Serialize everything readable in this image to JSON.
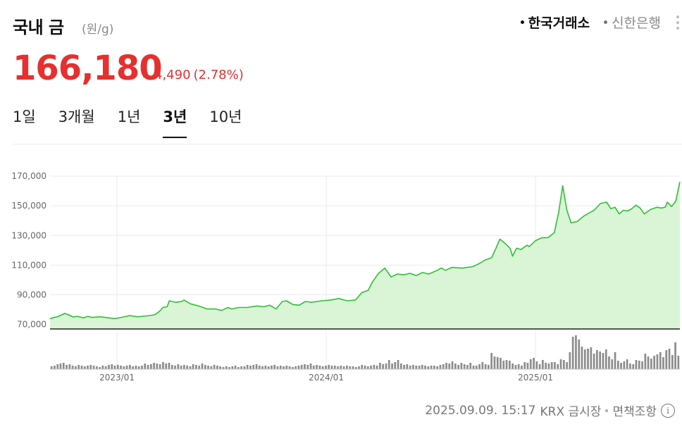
{
  "header": {
    "title": "국내 금",
    "unit": "(원/g)",
    "exchanges": [
      {
        "label": "한국거래소",
        "active": true
      },
      {
        "label": "신한은행",
        "active": false
      }
    ]
  },
  "quote": {
    "price": "166,180",
    "change": "4,490",
    "change_rate": "(2.78%)",
    "direction": "up"
  },
  "tabs": [
    {
      "label": "1일",
      "active": false
    },
    {
      "label": "3개월",
      "active": false
    },
    {
      "label": "1년",
      "active": false
    },
    {
      "label": "3년",
      "active": true
    },
    {
      "label": "10년",
      "active": false
    }
  ],
  "footer": {
    "timestamp": "2025.09.09. 15:17",
    "source": "KRX 금시장",
    "disclaimer": "면책조항",
    "info_icon": "info-icon"
  },
  "colors": {
    "price_up": "#e5302f",
    "line": "#2fbf35",
    "area": "#d9f5d6",
    "volume": "#8c8c8c"
  },
  "chart_data": {
    "type": "line",
    "subtype": "price-area-with-volume",
    "yticks": [
      "170,000",
      "150,000",
      "130,000",
      "110,000",
      "90,000",
      "70,000"
    ],
    "ytick_values": [
      170000,
      150000,
      130000,
      110000,
      90000,
      70000
    ],
    "xticks": [
      "2023/01",
      "2024/01",
      "2025/01"
    ],
    "xtick_positions": [
      2023.0,
      2024.0,
      2025.0
    ],
    "xlim": [
      2022.68,
      2025.69
    ],
    "ylim": [
      67000,
      170000
    ],
    "grid": true,
    "series": [
      {
        "values": [
          [
            2022.68,
            74000
          ],
          [
            2022.72,
            75500
          ],
          [
            2022.75,
            77500
          ],
          [
            2022.77,
            76500
          ],
          [
            2022.79,
            75000
          ],
          [
            2022.81,
            75500
          ],
          [
            2022.84,
            74500
          ],
          [
            2022.86,
            75500
          ],
          [
            2022.88,
            74800
          ],
          [
            2022.92,
            75200
          ],
          [
            2022.96,
            74500
          ],
          [
            2022.99,
            74000
          ],
          [
            2023.02,
            74800
          ],
          [
            2023.06,
            76000
          ],
          [
            2023.1,
            75200
          ],
          [
            2023.14,
            75800
          ],
          [
            2023.18,
            76500
          ],
          [
            2023.2,
            78500
          ],
          [
            2023.22,
            81500
          ],
          [
            2023.24,
            82000
          ],
          [
            2023.25,
            86000
          ],
          [
            2023.28,
            85000
          ],
          [
            2023.31,
            85500
          ],
          [
            2023.32,
            86500
          ],
          [
            2023.35,
            84000
          ],
          [
            2023.39,
            82500
          ],
          [
            2023.43,
            80500
          ],
          [
            2023.47,
            80500
          ],
          [
            2023.5,
            79500
          ],
          [
            2023.53,
            81500
          ],
          [
            2023.55,
            80500
          ],
          [
            2023.58,
            81500
          ],
          [
            2023.62,
            81500
          ],
          [
            2023.67,
            82500
          ],
          [
            2023.7,
            82000
          ],
          [
            2023.73,
            83000
          ],
          [
            2023.76,
            80500
          ],
          [
            2023.79,
            85500
          ],
          [
            2023.81,
            86000
          ],
          [
            2023.84,
            83500
          ],
          [
            2023.87,
            83000
          ],
          [
            2023.9,
            85500
          ],
          [
            2023.93,
            85000
          ],
          [
            2023.98,
            86000
          ],
          [
            2024.02,
            86500
          ],
          [
            2024.06,
            87500
          ],
          [
            2024.1,
            86000
          ],
          [
            2024.14,
            86500
          ],
          [
            2024.17,
            91500
          ],
          [
            2024.2,
            93000
          ],
          [
            2024.22,
            98500
          ],
          [
            2024.25,
            104500
          ],
          [
            2024.28,
            108000
          ],
          [
            2024.31,
            102000
          ],
          [
            2024.34,
            104000
          ],
          [
            2024.37,
            103500
          ],
          [
            2024.4,
            104500
          ],
          [
            2024.43,
            103000
          ],
          [
            2024.46,
            105000
          ],
          [
            2024.49,
            104000
          ],
          [
            2024.53,
            106500
          ],
          [
            2024.55,
            108000
          ],
          [
            2024.57,
            106500
          ],
          [
            2024.6,
            108500
          ],
          [
            2024.65,
            108000
          ],
          [
            2024.7,
            109000
          ],
          [
            2024.73,
            111000
          ],
          [
            2024.76,
            113500
          ],
          [
            2024.79,
            115000
          ],
          [
            2024.81,
            121000
          ],
          [
            2024.83,
            127500
          ],
          [
            2024.86,
            124000
          ],
          [
            2024.88,
            121000
          ],
          [
            2024.89,
            116000
          ],
          [
            2024.91,
            121500
          ],
          [
            2024.93,
            120500
          ],
          [
            2024.96,
            123500
          ],
          [
            2024.97,
            122500
          ],
          [
            2025.0,
            126500
          ],
          [
            2025.03,
            128500
          ],
          [
            2025.06,
            128500
          ],
          [
            2025.09,
            132000
          ],
          [
            2025.11,
            145000
          ],
          [
            2025.13,
            163500
          ],
          [
            2025.15,
            147000
          ],
          [
            2025.17,
            138500
          ],
          [
            2025.2,
            139500
          ],
          [
            2025.23,
            143000
          ],
          [
            2025.26,
            145500
          ],
          [
            2025.28,
            147000
          ],
          [
            2025.31,
            151500
          ],
          [
            2025.34,
            152500
          ],
          [
            2025.36,
            148000
          ],
          [
            2025.38,
            149000
          ],
          [
            2025.4,
            144500
          ],
          [
            2025.42,
            147000
          ],
          [
            2025.44,
            146500
          ],
          [
            2025.46,
            148000
          ],
          [
            2025.48,
            150500
          ],
          [
            2025.5,
            148500
          ],
          [
            2025.52,
            144500
          ],
          [
            2025.55,
            147500
          ],
          [
            2025.58,
            149000
          ],
          [
            2025.6,
            148500
          ],
          [
            2025.62,
            149000
          ],
          [
            2025.63,
            152500
          ],
          [
            2025.65,
            149500
          ],
          [
            2025.67,
            153000
          ],
          [
            2025.69,
            166180
          ]
        ]
      }
    ],
    "volume_values": [
      4,
      5,
      7,
      8,
      9,
      6,
      7,
      5,
      4,
      6,
      5,
      4,
      5,
      6,
      5,
      4,
      3,
      5,
      4,
      6,
      7,
      5,
      6,
      5,
      4,
      5,
      6,
      4,
      5,
      4,
      5,
      8,
      6,
      7,
      9,
      8,
      7,
      10,
      8,
      9,
      6,
      5,
      7,
      5,
      6,
      5,
      4,
      7,
      6,
      5,
      8,
      6,
      5,
      4,
      6,
      5,
      4,
      3,
      4,
      3,
      4,
      5,
      3,
      4,
      4,
      6,
      5,
      6,
      7,
      5,
      4,
      5,
      4,
      5,
      6,
      4,
      5,
      4,
      5,
      4,
      3,
      4,
      5,
      6,
      7,
      6,
      8,
      5,
      6,
      5,
      4,
      5,
      6,
      5,
      5,
      4,
      5,
      4,
      5,
      4,
      4,
      3,
      4,
      6,
      5,
      4,
      5,
      6,
      5,
      9,
      7,
      8,
      13,
      8,
      10,
      13,
      8,
      6,
      7,
      5,
      6,
      5,
      5,
      6,
      5,
      4,
      5,
      5,
      4,
      6,
      7,
      9,
      8,
      11,
      8,
      6,
      9,
      7,
      6,
      9,
      5,
      5,
      7,
      10,
      7,
      6,
      23,
      18,
      17,
      16,
      12,
      13,
      12,
      8,
      6,
      7,
      5,
      10,
      9,
      14,
      16,
      11,
      7,
      13,
      9,
      8,
      10,
      10,
      7,
      14,
      13,
      10,
      24,
      46,
      48,
      42,
      32,
      28,
      29,
      31,
      22,
      27,
      25,
      23,
      28,
      18,
      14,
      24,
      12,
      9,
      11,
      14,
      8,
      7,
      13,
      12,
      11,
      22,
      18,
      15,
      19,
      21,
      24,
      17,
      27,
      29,
      20,
      38,
      19
    ]
  }
}
